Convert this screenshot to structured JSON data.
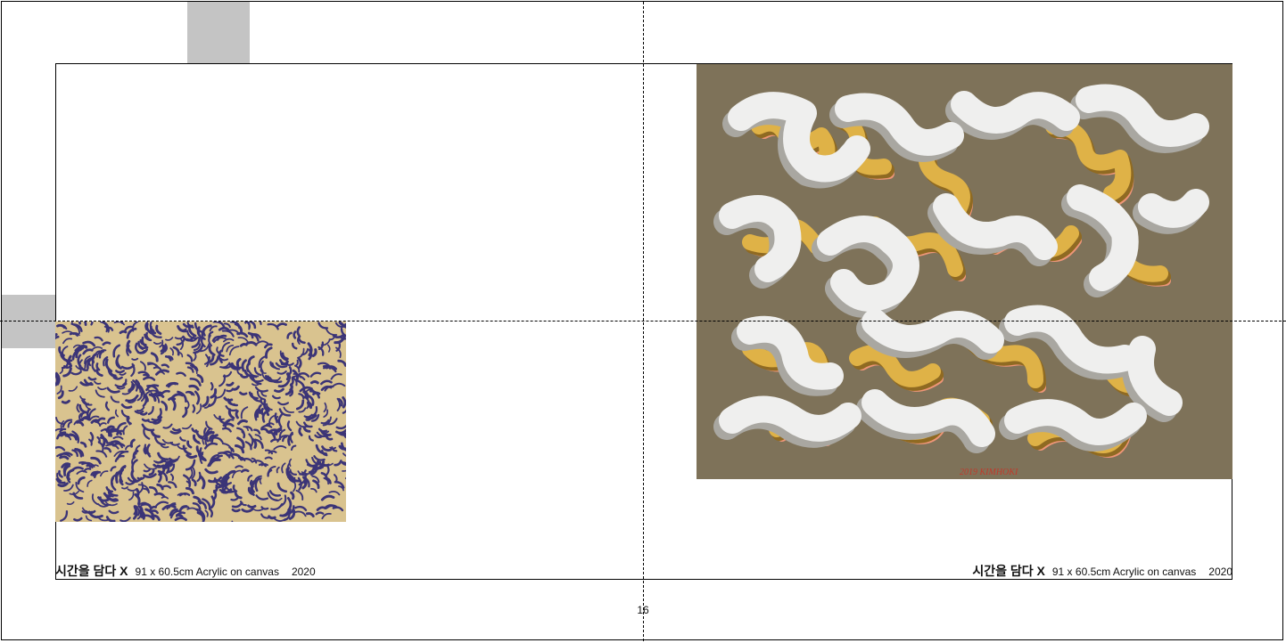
{
  "artworks": [
    {
      "caption": {
        "title": "시간을 담다 X",
        "detail": "91 x 60.5cm Acrylic on canvas",
        "year": "2020"
      },
      "palette": {
        "ground": "#d9c38f",
        "stroke": "#3b3477"
      }
    },
    {
      "caption": {
        "title": "시간을 담다 X",
        "detail": "91 x 60.5cm Acrylic on canvas",
        "year": "2020"
      },
      "signature": "2019 KIMHOKI",
      "palette": {
        "ground": "#7e7259",
        "white": "#efefee",
        "yellow": "#dfb247",
        "coral": "#ef9678"
      }
    }
  ],
  "page_number": "16"
}
